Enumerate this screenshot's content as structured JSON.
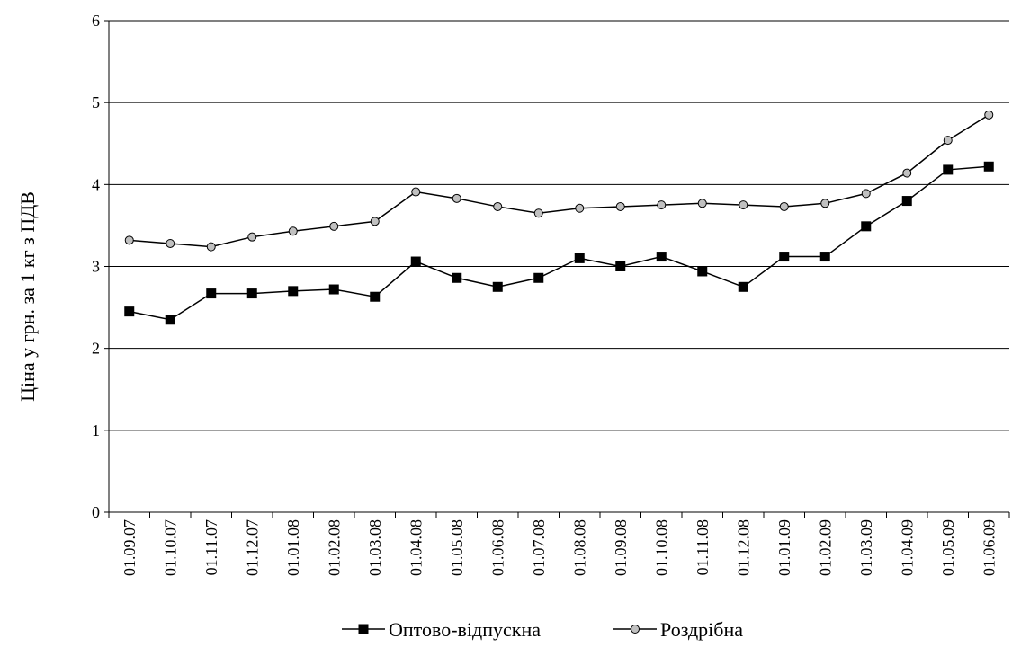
{
  "chart_data": {
    "type": "line",
    "categories": [
      "01.09.07",
      "01.10.07",
      "01.11.07",
      "01.12.07",
      "01.01.08",
      "01.02.08",
      "01.03.08",
      "01.04.08",
      "01.05.08",
      "01.06.08",
      "01.07.08",
      "01.08.08",
      "01.09.08",
      "01.10.08",
      "01.11.08",
      "01.12.08",
      "01.01.09",
      "01.02.09",
      "01.03.09",
      "01.04.09",
      "01.05.09",
      "01.06.09"
    ],
    "series": [
      {
        "name": "Оптово-відпускна",
        "marker": "square",
        "color": "#000000",
        "values": [
          2.45,
          2.35,
          2.67,
          2.67,
          2.7,
          2.72,
          2.63,
          3.06,
          2.86,
          2.75,
          2.86,
          3.1,
          3.0,
          3.12,
          2.94,
          2.75,
          3.12,
          3.12,
          3.49,
          3.8,
          4.18,
          4.22
        ]
      },
      {
        "name": "Роздрібна",
        "marker": "circle",
        "color": "#c0c0c0",
        "values": [
          3.32,
          3.28,
          3.24,
          3.36,
          3.43,
          3.49,
          3.55,
          3.91,
          3.83,
          3.73,
          3.65,
          3.71,
          3.73,
          3.75,
          3.77,
          3.75,
          3.73,
          3.77,
          3.89,
          4.14,
          4.54,
          4.85
        ]
      }
    ],
    "title": "",
    "xlabel": "",
    "ylabel": "Ціна у грн. за 1 кг з ПДВ",
    "ylim": [
      0,
      6
    ],
    "yticks": [
      "0",
      "1",
      "2",
      "3",
      "4",
      "5",
      "6"
    ],
    "grid": "horizontal",
    "legend_position": "bottom"
  }
}
